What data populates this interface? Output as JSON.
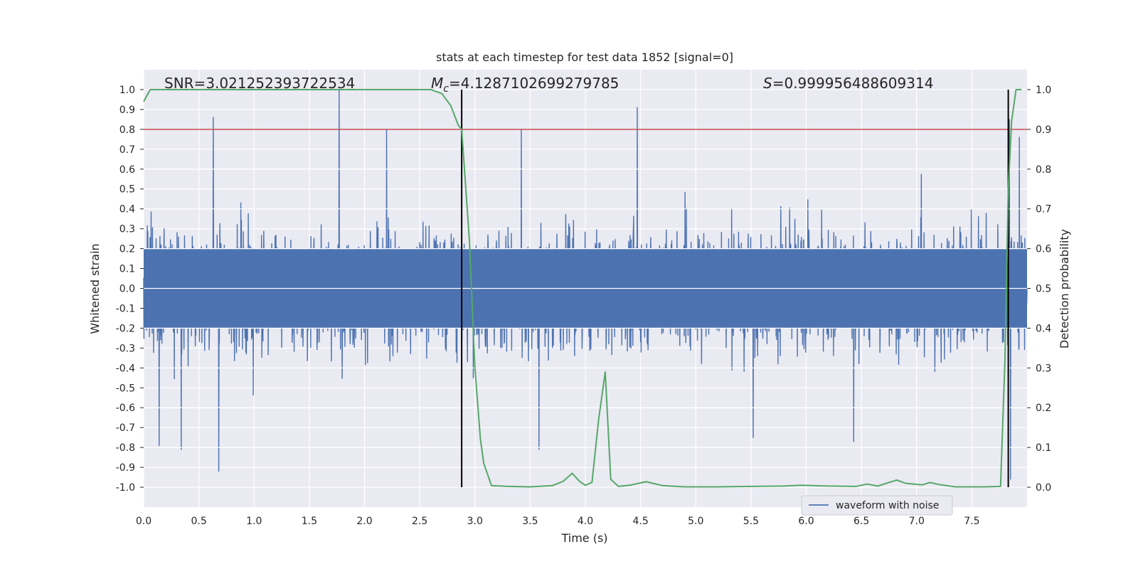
{
  "chart_data": {
    "type": "line",
    "title": "stats at each timestep for test data 1852 [signal=0]",
    "xlabel": "Time (s)",
    "ylabel": "Whitened strain",
    "y2label": "Detection probability",
    "xlim": [
      0.0,
      8.0
    ],
    "ylim": [
      -1.1,
      1.1
    ],
    "y2lim": [
      -0.05,
      1.05
    ],
    "xticks": [
      0.0,
      0.5,
      1.0,
      1.5,
      2.0,
      2.5,
      3.0,
      3.5,
      4.0,
      4.5,
      5.0,
      5.5,
      6.0,
      6.5,
      7.0,
      7.5
    ],
    "yticks": [
      -1.0,
      -0.9,
      -0.8,
      -0.7,
      -0.6,
      -0.5,
      -0.4,
      -0.3,
      -0.2,
      -0.1,
      0.0,
      0.1,
      0.2,
      0.3,
      0.4,
      0.5,
      0.6,
      0.7,
      0.8,
      0.9,
      1.0
    ],
    "y2ticks": [
      0.0,
      0.1,
      0.2,
      0.3,
      0.4,
      0.5,
      0.6,
      0.7,
      0.8,
      0.9,
      1.0
    ],
    "annotations": [
      {
        "text_prefix": "SNR=",
        "value": "3.021252393722534"
      },
      {
        "text_prefix": "M",
        "subscript": "c",
        "text_mid": "=",
        "value": "4.1287102699279785"
      },
      {
        "text_prefix": "S",
        "text_mid": "=",
        "value": "0.999956488609314"
      }
    ],
    "threshold_line": {
      "axis": "y2",
      "value": 0.9,
      "color": "#c44e52"
    },
    "vertical_markers": [
      {
        "x": 2.88
      },
      {
        "x": 7.83
      }
    ],
    "series": [
      {
        "name": "waveform with noise",
        "axis": "y",
        "color": "#4c72b0",
        "description": "noisy whitened strain, envelope roughly within ±0.4 with spikes",
        "spikes": [
          {
            "x": 0.63,
            "y": 0.86
          },
          {
            "x": 0.68,
            "y": -0.92
          },
          {
            "x": 0.14,
            "y": -0.79
          },
          {
            "x": 0.34,
            "y": -0.81
          },
          {
            "x": 1.77,
            "y": 1.0
          },
          {
            "x": 2.2,
            "y": 0.8
          },
          {
            "x": 3.42,
            "y": 0.8
          },
          {
            "x": 3.58,
            "y": -0.81
          },
          {
            "x": 4.47,
            "y": 0.91
          },
          {
            "x": 6.43,
            "y": -0.77
          },
          {
            "x": 5.52,
            "y": -0.75
          },
          {
            "x": 7.84,
            "y": 0.85
          },
          {
            "x": 7.85,
            "y": -0.96
          },
          {
            "x": 7.93,
            "y": 0.76
          }
        ]
      },
      {
        "name": "detection probability",
        "axis": "y2",
        "color": "#55a868",
        "x": [
          0.0,
          0.06,
          0.2,
          0.5,
          1.0,
          1.5,
          2.0,
          2.5,
          2.6,
          2.7,
          2.78,
          2.85,
          2.88,
          2.95,
          3.0,
          3.05,
          3.08,
          3.15,
          3.3,
          3.5,
          3.7,
          3.8,
          3.88,
          3.95,
          4.0,
          4.06,
          4.12,
          4.18,
          4.23,
          4.3,
          4.4,
          4.55,
          4.7,
          4.9,
          5.2,
          5.5,
          5.8,
          5.95,
          6.2,
          6.45,
          6.55,
          6.65,
          6.75,
          6.82,
          6.9,
          7.05,
          7.12,
          7.2,
          7.35,
          7.6,
          7.76,
          7.8,
          7.83,
          7.86,
          7.9,
          7.95
        ],
        "values": [
          0.97,
          1.0,
          1.0,
          1.0,
          1.0,
          1.0,
          1.0,
          1.0,
          1.0,
          0.99,
          0.96,
          0.91,
          0.9,
          0.62,
          0.3,
          0.12,
          0.06,
          0.004,
          0.002,
          0.001,
          0.004,
          0.015,
          0.035,
          0.014,
          0.005,
          0.012,
          0.17,
          0.29,
          0.02,
          0.002,
          0.005,
          0.014,
          0.004,
          0.001,
          0.001,
          0.002,
          0.003,
          0.005,
          0.003,
          0.002,
          0.008,
          0.003,
          0.012,
          0.018,
          0.01,
          0.006,
          0.012,
          0.007,
          0.001,
          0.001,
          0.002,
          0.32,
          0.75,
          0.92,
          1.0,
          1.0
        ]
      }
    ],
    "legend": {
      "entries": [
        "waveform with noise"
      ],
      "placement": "lower-center-right"
    }
  }
}
